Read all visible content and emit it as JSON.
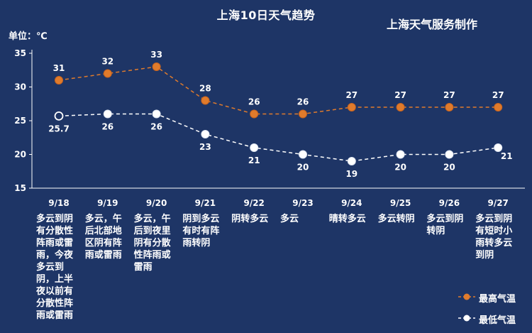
{
  "title": "上海10日天气趋势",
  "credit": "上海天气服务制作",
  "unit_label": "单位：℃",
  "colors": {
    "background": "#1e3566",
    "high": "#e07b2c",
    "low": "#ffffff"
  },
  "chart_data": {
    "type": "line",
    "categories": [
      "9/18",
      "9/19",
      "9/20",
      "9/21",
      "9/22",
      "9/23",
      "9/24",
      "9/25",
      "9/26",
      "9/27"
    ],
    "series": [
      {
        "name": "最高气温",
        "values": [
          31,
          32,
          33,
          28,
          26,
          26,
          27,
          27,
          27,
          27
        ],
        "labels": [
          "31",
          "32",
          "33",
          "28",
          "26",
          "26",
          "27",
          "27",
          "27",
          "27"
        ]
      },
      {
        "name": "最低气温",
        "values": [
          25.7,
          26,
          26,
          23,
          21,
          20,
          19,
          20,
          20,
          21
        ],
        "labels": [
          "25.7",
          "26",
          "26",
          "23",
          "21",
          "20",
          "19",
          "20",
          "20",
          "21"
        ]
      }
    ],
    "ylim": [
      15,
      35
    ],
    "yticks": [
      15,
      20,
      25,
      30,
      35
    ],
    "ytick_labels": [
      "15",
      "20",
      "25",
      "30",
      "35"
    ],
    "grid": false,
    "legend": "bottom-right",
    "line_style": "dashed"
  },
  "weather_descriptions": [
    "多云到阴有分散性阵雨或雷雨，今夜多云到阴，上半夜以前有分散性阵雨或雷雨",
    "多云，午后北部地区阴有阵雨或雷雨",
    "多云，午后到夜里阴有分散性阵雨或雷雨",
    "阴到多云有时有阵雨转阴",
    "阴转多云",
    "多云",
    "晴转多云",
    "多云转阴",
    "多云到阴转阴",
    "多云到阴有短时小雨转多云到阴"
  ]
}
